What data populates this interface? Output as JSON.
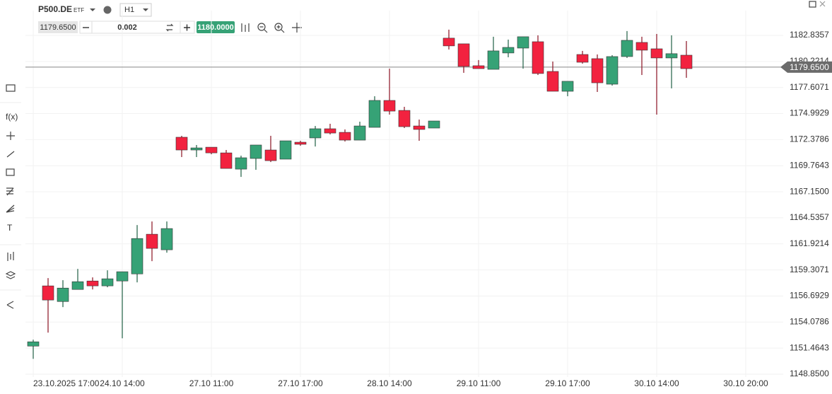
{
  "header": {
    "symbol": "P500.DE",
    "symbol_type": "ETF",
    "timeframe": "H1",
    "sell_price": "1179.6500",
    "lot": "0.002",
    "buy_price": "1180.0000",
    "tool_texts": [
      "f(x)",
      "T"
    ]
  },
  "chart_data": {
    "type": "candlestick",
    "categories": [
      "23.10.2025 17:00",
      null,
      null,
      null,
      null,
      null,
      "24.10 14:00",
      null,
      null,
      null,
      null,
      null,
      "27.10 11:00",
      null,
      null,
      null,
      null,
      null,
      "27.10 17:00",
      null,
      null,
      null,
      null,
      null,
      "28.10 14:00",
      null,
      null,
      null,
      null,
      null,
      "29.10 11:00",
      null,
      null,
      null,
      null,
      null,
      "29.10 17:00",
      null,
      null,
      null,
      null,
      null,
      "30.10 14:00",
      null,
      null,
      null,
      null,
      null,
      "30.10 20:00"
    ],
    "open": [
      1151.67,
      1157.71,
      1156.14,
      1157.35,
      1158.2,
      1157.71,
      1158.2,
      1158.91,
      1162.89,
      1161.33,
      1172.62,
      1171.34,
      1171.62,
      1171.05,
      1169.42,
      1170.49,
      1171.34,
      1170.42,
      1172.12,
      1172.55,
      1173.47,
      1173.11,
      1172.33,
      1173.61,
      1176.31,
      1175.31,
      1173.75,
      1173.54,
      1182.56,
      1181.99,
      1179.79,
      1179.43,
      1181.07,
      1181.56,
      1182.2,
      1179.22,
      1177.23,
      1180.92,
      1180.5,
      1177.94,
      1180.71,
      1182.13,
      1181.49,
      1180.57,
      1180.85,
      null,
      null,
      null,
      null
    ],
    "high": [
      1152.31,
      1158.49,
      1158.28,
      1159.41,
      1158.56,
      1159.27,
      1159.13,
      1163.81,
      1164.17,
      1164.17,
      1172.76,
      1171.84,
      1171.62,
      1171.34,
      1170.77,
      1171.84,
      1172.76,
      1172.26,
      1172.26,
      1173.75,
      1173.97,
      1173.4,
      1174.18,
      1176.73,
      1179.5,
      1175.67,
      1174.39,
      1174.25,
      1183.41,
      1181.99,
      1180.36,
      1182.7,
      1182.41,
      1182.7,
      1182.84,
      1180.21,
      1178.23,
      1181.28,
      1180.92,
      1180.85,
      1183.27,
      1182.7,
      1182.98,
      1182.84,
      1182.27,
      null,
      null,
      null,
      null
    ],
    "low": [
      1150.39,
      1153.02,
      1155.58,
      1157.35,
      1157.35,
      1157.57,
      1152.45,
      1158.06,
      1160.19,
      1161.04,
      1170.63,
      1170.63,
      1170.91,
      1169.49,
      1168.64,
      1169.35,
      1170.13,
      1170.42,
      1171.76,
      1171.69,
      1172.9,
      1172.19,
      1172.33,
      1173.61,
      1174.89,
      1173.54,
      1172.26,
      1173.54,
      1181.42,
      1179.08,
      1179.5,
      1179.43,
      1180.64,
      1179.5,
      1178.86,
      1177.23,
      1176.73,
      1180.0,
      1177.16,
      1177.8,
      1180.57,
      1178.86,
      1174.89,
      1177.52,
      1178.58,
      null,
      null,
      null,
      null
    ],
    "close": [
      1152.1,
      1156.29,
      1157.49,
      1158.13,
      1157.71,
      1158.42,
      1159.13,
      1162.46,
      1161.47,
      1163.46,
      1171.34,
      1171.55,
      1171.05,
      1169.49,
      1170.56,
      1171.84,
      1170.27,
      1172.26,
      1171.91,
      1173.47,
      1173.04,
      1172.33,
      1173.75,
      1176.31,
      1175.24,
      1173.68,
      1173.4,
      1174.25,
      1181.78,
      1179.72,
      1179.5,
      1181.28,
      1181.63,
      1182.7,
      1179.01,
      1177.23,
      1178.23,
      1180.14,
      1178.08,
      1180.71,
      1182.34,
      1181.35,
      1180.57,
      1181.0,
      1179.5,
      null,
      null,
      null,
      null
    ],
    "up_color": "#36a276",
    "down_color": "#f2223f",
    "ylim": [
      1148.85,
      1185.32
    ],
    "yticks": [
      {
        "value": 1148.85,
        "label": "1148.8500"
      },
      1151.4643,
      1154.0786,
      1156.6929,
      1159.3071,
      1161.9214,
      1164.5357,
      {
        "value": 1167.15,
        "label": "1167.1500"
      },
      1169.7643,
      1172.3786,
      1174.9929,
      1177.6071,
      1180.2214,
      1182.8357
    ],
    "current_price": {
      "value": 1179.65,
      "label": "1179.6500"
    },
    "grid": true
  }
}
